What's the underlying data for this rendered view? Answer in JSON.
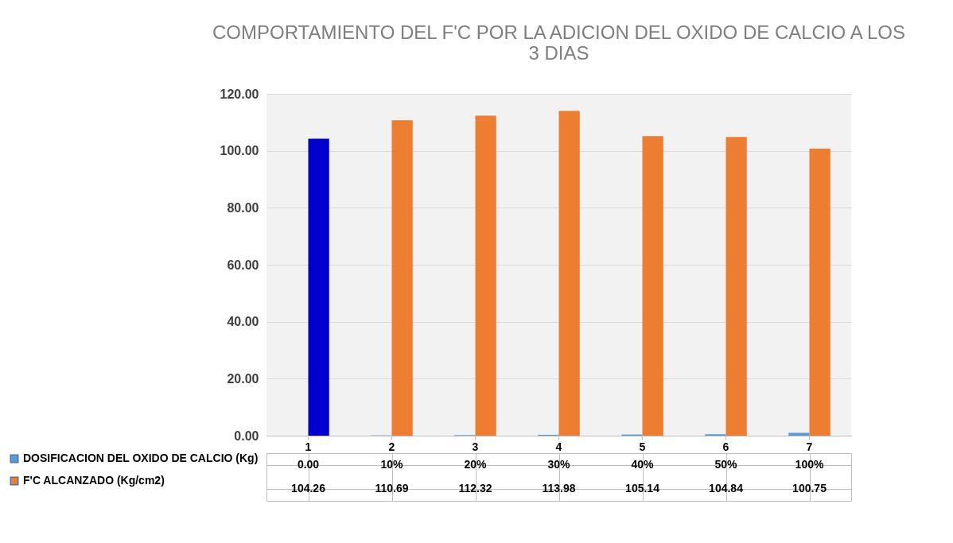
{
  "chart_data": {
    "type": "bar",
    "title": "COMPORTAMIENTO DEL F'C POR LA ADICION DEL OXIDO DE CALCIO A LOS 3 DIAS",
    "categories": [
      "1",
      "2",
      "3",
      "4",
      "5",
      "6",
      "7"
    ],
    "series": [
      {
        "name": "DOSIFICACION DEL OXIDO DE CALCIO (Kg)",
        "color": "#5b9bd5",
        "values": [
          0,
          0.1,
          0.2,
          0.3,
          0.4,
          0.5,
          1
        ],
        "value_labels": [
          "0.00",
          "10%",
          "20%",
          "30%",
          "40%",
          "50%",
          "100%"
        ]
      },
      {
        "name": "F'C ALCANZADO (Kg/cm2)",
        "color": "#ed7d31",
        "colors": [
          "#0000cc",
          "#ed7d31",
          "#ed7d31",
          "#ed7d31",
          "#ed7d31",
          "#ed7d31",
          "#ed7d31"
        ],
        "values": [
          104.26,
          110.69,
          112.32,
          113.98,
          105.14,
          104.84,
          100.75
        ],
        "value_labels": [
          "104.26",
          "110.69",
          "112.32",
          "113.98",
          "105.14",
          "104.84",
          "100.75"
        ]
      }
    ],
    "ylim": [
      0,
      120
    ],
    "yticks": [
      {
        "value": 0,
        "label": "0.00"
      },
      {
        "value": 20,
        "label": "20.00"
      },
      {
        "value": 40,
        "label": "40.00"
      },
      {
        "value": 60,
        "label": "60.00"
      },
      {
        "value": 80,
        "label": "80.00"
      },
      {
        "value": 100,
        "label": "100.00"
      },
      {
        "value": 120,
        "label": "120.00"
      }
    ],
    "grid": "y",
    "legend": "bottom"
  }
}
